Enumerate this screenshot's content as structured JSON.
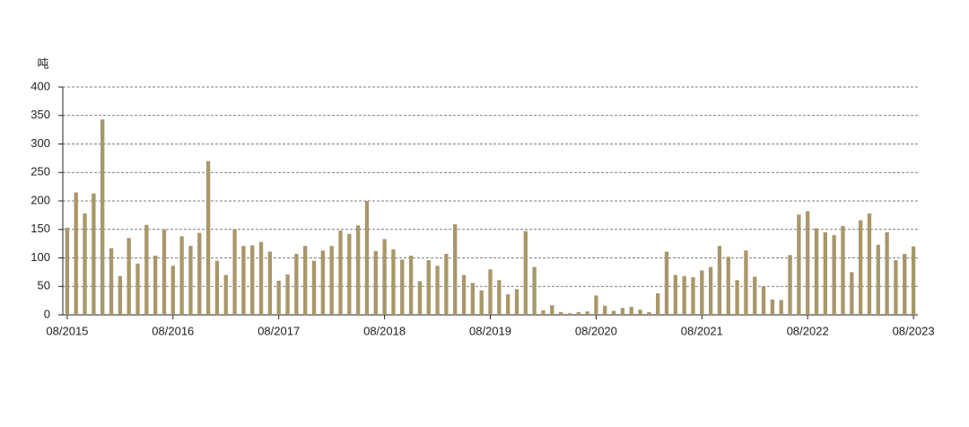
{
  "chart_data": {
    "type": "bar",
    "y_label": "吨",
    "categories": [
      "08/2015",
      null,
      null,
      null,
      null,
      null,
      null,
      null,
      null,
      null,
      null,
      null,
      "08/2016",
      null,
      null,
      null,
      null,
      null,
      null,
      null,
      null,
      null,
      null,
      null,
      "08/2017",
      null,
      null,
      null,
      null,
      null,
      null,
      null,
      null,
      null,
      null,
      null,
      "08/2018",
      null,
      null,
      null,
      null,
      null,
      null,
      null,
      null,
      null,
      null,
      null,
      "08/2019",
      null,
      null,
      null,
      null,
      null,
      null,
      null,
      null,
      null,
      null,
      null,
      "08/2020",
      null,
      null,
      null,
      null,
      null,
      null,
      null,
      null,
      null,
      null,
      null,
      "08/2021",
      null,
      null,
      null,
      null,
      null,
      null,
      null,
      null,
      null,
      null,
      null,
      "08/2022",
      null,
      null,
      null,
      null,
      null,
      null,
      null,
      null,
      null,
      null,
      null,
      "08/2023"
    ],
    "values": [
      153,
      215,
      178,
      213,
      343,
      117,
      68,
      135,
      90,
      158,
      104,
      150,
      86,
      138,
      121,
      144,
      270,
      95,
      70,
      150,
      121,
      122,
      128,
      111,
      60,
      71,
      107,
      121,
      95,
      113,
      121,
      148,
      142,
      157,
      200,
      112,
      133,
      115,
      97,
      104,
      59,
      96,
      86,
      107,
      159,
      70,
      56,
      43,
      80,
      61,
      36,
      45,
      147,
      84,
      8,
      17,
      5,
      3,
      5,
      6,
      34,
      16,
      7,
      12,
      14,
      9,
      5,
      38,
      111,
      70,
      68,
      66,
      78,
      84,
      121,
      102,
      61,
      113,
      67,
      50,
      27,
      26,
      105,
      176,
      182,
      152,
      145,
      140,
      156,
      75,
      166,
      178,
      123,
      145,
      96,
      107,
      120
    ],
    "color": "#a8976a",
    "ylim": [
      0,
      400
    ],
    "yticks": [
      0,
      50,
      100,
      150,
      200,
      250,
      300,
      350,
      400
    ],
    "grid": true
  }
}
